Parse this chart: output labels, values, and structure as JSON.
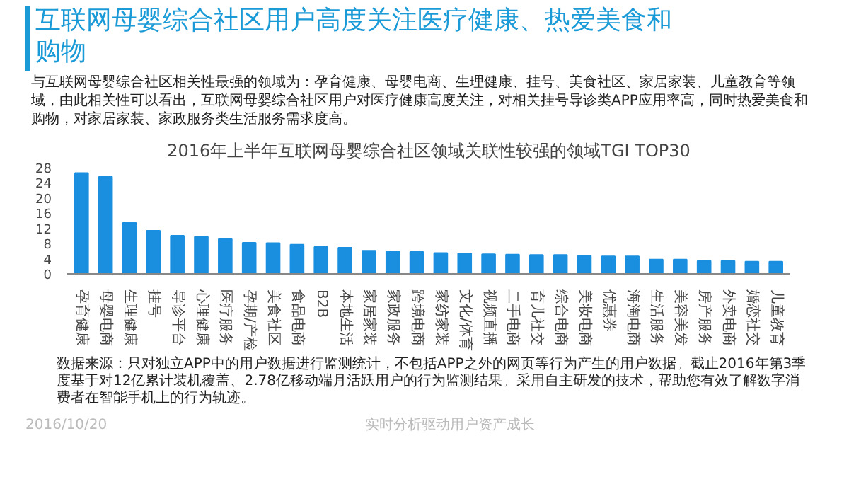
{
  "chart_data": {
    "type": "bar",
    "title": "互联网母婴综合社区用户高度关注医疗健康、热爱美食和购物",
    "subtitle": "2016年上半年互联网母婴综合社区领域关联性较强的领域TGI TOP30",
    "annotations": [
      "与互联网母婴综合社区相关性最强的领域为：孕育健康、母婴电商、生理健康、挂号、美食社区、家居家装、儿童教育等领域，由此相关性可以看出，互联网母婴综合社区用户对医疗健康高度关注，对相关挂号导诊类APP应用率高，同时热爱美食和购物，对家居家装、家政服务类生活服务需求度高。",
      "数据来源：只对独立APP中的用户数据进行监测统计，不包括APP之外的网页等行为产生的用户数据。截止2016年第3季度基于对12亿累计装机覆盖、2.78亿移动端月活跃用户的行为监测结果。采用自主研发的技术，帮助您有效了解数字消费者在智能手机上的行为轨迹。",
      "2016/10/20",
      "实时分析驱动用户资产成长"
    ],
    "categories": [
      "孕育健康",
      "母婴电商",
      "生理健康",
      "挂号",
      "导诊平台",
      "心理健康",
      "医疗服务",
      "孕期/产检",
      "美食社区",
      "食品电商",
      "B2B",
      "本地生活",
      "家居家装",
      "家政服务",
      "跨境电商",
      "家纺家装",
      "文化/体育",
      "视频直播",
      "二手电商",
      "育儿社交",
      "综合电商",
      "美妆电商",
      "优惠券",
      "海淘电商",
      "生活服务",
      "美容美发",
      "房产服务",
      "外卖电商",
      "婚恋社交",
      "儿童教育"
    ],
    "values": [
      26.6,
      25.6,
      13.5,
      11.4,
      10.1,
      9.8,
      9.2,
      8.2,
      8.1,
      7.7,
      7.1,
      6.9,
      6.1,
      5.9,
      5.8,
      5.5,
      5.4,
      5.2,
      5.1,
      5.0,
      5.0,
      4.7,
      4.6,
      4.6,
      3.8,
      3.8,
      3.4,
      3.4,
      3.2,
      3.2
    ],
    "color": "#1a8fe0",
    "ylim": [
      0,
      28
    ],
    "yticks": [
      0,
      4,
      8,
      12,
      16,
      20,
      24,
      28
    ],
    "grid": false
  }
}
